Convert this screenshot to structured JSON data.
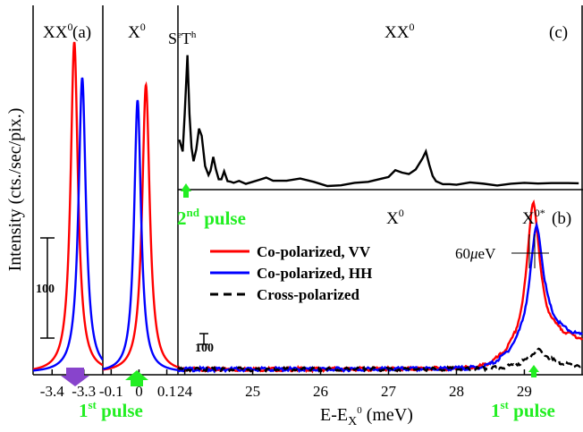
{
  "chart_data": [
    {
      "panel": "(a)",
      "type": "line",
      "sub_panels": [
        {
          "label": "XX0",
          "x_ticks": [
            -3.4,
            -3.3
          ],
          "xlim": [
            -3.46,
            -3.24
          ],
          "series": [
            {
              "name": "Co-polarized, VV",
              "color": "#ff0000",
              "peak_x": -3.33,
              "peak_y": 370,
              "fwhm": 0.028,
              "base": 0
            },
            {
              "name": "Co-polarized, HH",
              "color": "#0000ff",
              "peak_x": -3.305,
              "peak_y": 330,
              "fwhm": 0.028,
              "base": 0
            }
          ]
        },
        {
          "label": "X0",
          "x_ticks": [
            -0.1,
            0,
            0.1
          ],
          "xlim": [
            -0.13,
            0.14
          ],
          "series": [
            {
              "name": "Co-polarized, VV",
              "color": "#ff0000",
              "peak_x": 0.025,
              "peak_y": 322,
              "fwhm": 0.033,
              "base": 0
            },
            {
              "name": "Co-polarized, HH",
              "color": "#0000ff",
              "peak_x": -0.005,
              "peak_y": 305,
              "fwhm": 0.03,
              "base": 0
            }
          ]
        }
      ],
      "scale_bar": "100",
      "arrow": "1st pulse"
    },
    {
      "panel": "(c)",
      "type": "line",
      "xlim": [
        23.9,
        29.85
      ],
      "labels": [
        "SeTh",
        "XX0"
      ],
      "arrow": "2nd pulse",
      "series": [
        {
          "name": "XX0 trace",
          "color": "#000000",
          "x": [
            23.92,
            23.97,
            24.0,
            24.04,
            24.07,
            24.1,
            24.13,
            24.17,
            24.21,
            24.25,
            24.3,
            24.35,
            24.38,
            24.42,
            24.46,
            24.5,
            24.54,
            24.58,
            24.63,
            24.67,
            24.72,
            24.8,
            24.9,
            25.0,
            25.1,
            25.2,
            25.3,
            25.5,
            25.7,
            25.9,
            26.1,
            26.3,
            26.5,
            26.7,
            26.9,
            27.0,
            27.1,
            27.2,
            27.3,
            27.4,
            27.5,
            27.55,
            27.6,
            27.65,
            27.7,
            27.8,
            27.9,
            28.0,
            28.2,
            28.4,
            28.6,
            28.8,
            29.0,
            29.2,
            29.4,
            29.6,
            29.8
          ],
          "y": [
            0.35,
            0.28,
            0.55,
            1.0,
            0.55,
            0.3,
            0.2,
            0.28,
            0.42,
            0.37,
            0.15,
            0.08,
            0.1,
            0.22,
            0.12,
            0.06,
            0.07,
            0.12,
            0.05,
            0.04,
            0.04,
            0.05,
            0.03,
            0.02,
            0.03,
            0.05,
            0.03,
            0.02,
            0.04,
            0.02,
            0.02,
            0.02,
            0.03,
            0.04,
            0.06,
            0.08,
            0.14,
            0.12,
            0.08,
            0.12,
            0.2,
            0.26,
            0.15,
            0.06,
            0.03,
            0.03,
            0.02,
            0.02,
            0.03,
            0.02,
            0.01,
            0.02,
            0.02,
            0.01,
            0.01,
            0.02,
            0.01
          ]
        }
      ]
    },
    {
      "panel": "(b)",
      "type": "line",
      "xlabel": "E-E",
      "xlabel_sub": "X",
      "xlabel_sup": "0",
      "xlabel_unit": " (meV)",
      "ylabel": "Intensity (cts./sec/pix.)",
      "xlim": [
        23.9,
        29.85
      ],
      "x_ticks": [
        24,
        25,
        26,
        27,
        28,
        29
      ],
      "labels": [
        "X0",
        "X0*"
      ],
      "linewidth_label": "60μeV",
      "scale_bar": "100",
      "arrow": "1st pulse",
      "legend": [
        "Co-polarized, VV",
        "Co-polarized, HH",
        "Cross-polarized"
      ],
      "series": [
        {
          "name": "Co-polarized, VV",
          "color": "#ff0000",
          "style": "solid",
          "peak_x": 29.13,
          "peak_y": 520,
          "fwhm": 0.22,
          "tail": 150
        },
        {
          "name": "Co-polarized, HH",
          "color": "#0000ff",
          "style": "solid",
          "peak_x": 29.18,
          "peak_y": 410,
          "fwhm": 0.24,
          "tail": 160
        },
        {
          "name": "Cross-polarized",
          "color": "#000000",
          "style": "dashed",
          "peak_x": 29.2,
          "peak_y": 60,
          "fwhm": 0.35,
          "tail": 15
        }
      ]
    }
  ],
  "text": {
    "panel_a": "(a)",
    "panel_b": "(b)",
    "panel_c": "(c)",
    "xx0": "XX",
    "x0": "X",
    "sup0": "0",
    "x0star": "X",
    "sup0star": "0*",
    "seth_s": "S",
    "seth_e": "e",
    "seth_t": "T",
    "seth_h": "h",
    "pulse2_num": "2",
    "pulse2_sup": "nd",
    "pulse2_word": " pulse",
    "pulse1_num": "1",
    "pulse1_sup": "st",
    "pulse1_word": " pulse",
    "scale_a": "100",
    "scale_b": "100",
    "lw_num": "60",
    "lw_mu": "μ",
    "lw_unit": "eV",
    "ticks_a": [
      "-3.4",
      "-3.3",
      "-0.1",
      "0",
      "0.1"
    ]
  },
  "colors": {
    "vv": "#ff0000",
    "hh": "#0000ff",
    "cross": "#000000",
    "pulse": "#22ee22",
    "purple": "#8844cc"
  }
}
